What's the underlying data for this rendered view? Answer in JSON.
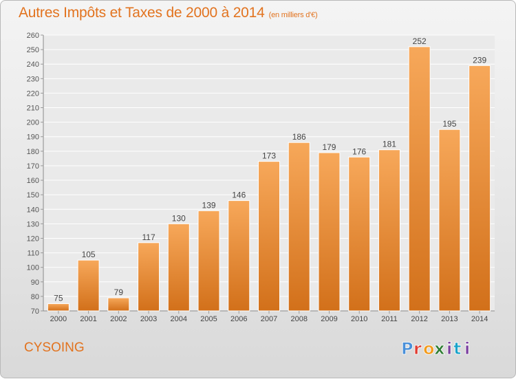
{
  "header": {
    "title": "Autres Impôts et Taxes de 2000 à 2014",
    "subtitle": "(en milliers d'€)"
  },
  "footer": {
    "commune": "CYSOING",
    "logo_text": "Proxiti"
  },
  "colors": {
    "bar_light": "#f7a85a",
    "bar_dark": "#d2701a",
    "accent": "#e2731f",
    "logo_p": "#4a90d9",
    "logo_r": "#e03a2f",
    "logo_o": "#f29b1d",
    "logo_x": "#2e7d32",
    "logo_i": "#7b3fa0",
    "logo_t": "#1aa3c9"
  },
  "chart_data": {
    "type": "bar",
    "title": "Autres Impôts et Taxes de 2000 à 2014",
    "subtitle": "(en milliers d'€)",
    "xlabel": "",
    "ylabel": "",
    "categories": [
      "2000",
      "2001",
      "2002",
      "2003",
      "2004",
      "2005",
      "2006",
      "2007",
      "2008",
      "2009",
      "2010",
      "2011",
      "2012",
      "2013",
      "2014"
    ],
    "values": [
      75,
      105,
      79,
      117,
      130,
      139,
      146,
      173,
      186,
      179,
      176,
      181,
      252,
      195,
      239
    ],
    "value_labels": [
      "75",
      "105",
      "79",
      "117",
      "130",
      "139",
      "146",
      "173",
      "186",
      "179",
      "176",
      "181",
      "252",
      "195",
      "239"
    ],
    "ylim": [
      70,
      260
    ],
    "yticks": [
      70,
      80,
      90,
      100,
      110,
      120,
      130,
      140,
      150,
      160,
      170,
      180,
      190,
      200,
      210,
      220,
      230,
      240,
      250,
      260
    ],
    "ytick_labels": [
      "70",
      "80",
      "90",
      "100",
      "110",
      "120",
      "130",
      "140",
      "150",
      "160",
      "170",
      "180",
      "190",
      "200",
      "210",
      "220",
      "230",
      "240",
      "250",
      "260"
    ],
    "grid": true,
    "legend": "none"
  }
}
